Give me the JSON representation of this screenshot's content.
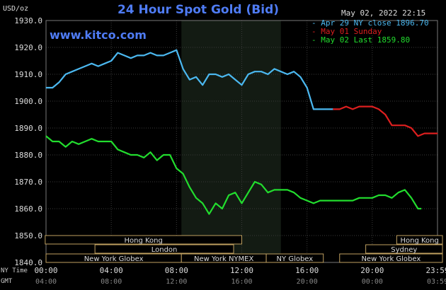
{
  "chart_data": {
    "type": "line",
    "title": "24 Hour Spot Gold (Bid)",
    "brand": "www.kitco.com",
    "timestamp": "May 02, 2022 22:15",
    "ylabel": "USD/oz",
    "ylim": [
      1840,
      1930
    ],
    "yticks": [
      "1930.0",
      "1920.0",
      "1910.0",
      "1900.0",
      "1890.0",
      "1880.0",
      "1870.0",
      "1860.0",
      "1850.0",
      "1840.0"
    ],
    "xlim": [
      0,
      24
    ],
    "xticks_ny": [
      "00:00",
      "04:00",
      "08:00",
      "12:00",
      "16:00",
      "20:00",
      "23:59"
    ],
    "xticks_gmt": [
      "04:00",
      "08:00",
      "12:00",
      "16:00",
      "20:00",
      "00:00",
      "03:59"
    ],
    "xtick_hours": [
      0,
      4,
      8,
      12,
      16,
      20,
      24
    ],
    "tz_primary": "NY Time",
    "tz_secondary": "GMT",
    "shaded_hours": [
      8.3,
      14.4
    ],
    "grid": true,
    "series": [
      {
        "name": "Apr 29 NY close 1896.70",
        "color": "#4bb8f0",
        "x": [
          0,
          0.4,
          0.8,
          1.2,
          1.6,
          2.0,
          2.4,
          2.8,
          3.2,
          3.6,
          4.0,
          4.4,
          4.8,
          5.2,
          5.6,
          6.0,
          6.4,
          6.8,
          7.2,
          7.6,
          8.0,
          8.4,
          8.8,
          9.2,
          9.6,
          10.0,
          10.4,
          10.8,
          11.2,
          11.6,
          12.0,
          12.4,
          12.8,
          13.2,
          13.6,
          14.0,
          14.4,
          14.8,
          15.2,
          15.6,
          16.0,
          16.4,
          16.8,
          17.2,
          17.6
        ],
        "y": [
          1905,
          1905,
          1907,
          1910,
          1911,
          1912,
          1913,
          1914,
          1913,
          1914,
          1915,
          1918,
          1917,
          1916,
          1917,
          1917,
          1918,
          1917,
          1917,
          1918,
          1919,
          1912,
          1908,
          1909,
          1906,
          1910,
          1910,
          1909,
          1910,
          1908,
          1906,
          1910,
          1911,
          1911,
          1910,
          1912,
          1911,
          1910,
          1911,
          1909,
          1905,
          1897,
          1897,
          1897,
          1897
        ]
      },
      {
        "name": "May 01 Sunday",
        "color": "#dd1f1f",
        "x": [
          17.6,
          18.0,
          18.4,
          18.8,
          19.2,
          19.6,
          20.0,
          20.4,
          20.8,
          21.2,
          21.6,
          22.0,
          22.4,
          22.8,
          23.2,
          23.6,
          24.0
        ],
        "y": [
          1897,
          1897,
          1898,
          1897,
          1898,
          1898,
          1898,
          1897,
          1895,
          1891,
          1891,
          1891,
          1890,
          1887,
          1888,
          1888,
          1888
        ]
      },
      {
        "name": "May 02 Last 1859.80",
        "color": "#22dd2e",
        "x": [
          0,
          0.4,
          0.8,
          1.2,
          1.6,
          2.0,
          2.4,
          2.8,
          3.2,
          3.6,
          4.0,
          4.4,
          4.8,
          5.2,
          5.6,
          6.0,
          6.4,
          6.8,
          7.2,
          7.6,
          8.0,
          8.4,
          8.8,
          9.2,
          9.6,
          10.0,
          10.4,
          10.8,
          11.2,
          11.6,
          12.0,
          12.4,
          12.8,
          13.2,
          13.6,
          14.0,
          14.4,
          14.8,
          15.2,
          15.6,
          16.0,
          16.4,
          16.8,
          17.2,
          17.6,
          18.0,
          18.4,
          18.8,
          19.2,
          19.6,
          20.0,
          20.4,
          20.8,
          21.2,
          21.6,
          22.0,
          22.4,
          22.8,
          23.0
        ],
        "y": [
          1887,
          1885,
          1885,
          1883,
          1885,
          1884,
          1885,
          1886,
          1885,
          1885,
          1885,
          1882,
          1881,
          1880,
          1880,
          1879,
          1881,
          1878,
          1880,
          1880,
          1875,
          1873,
          1868,
          1864,
          1862,
          1858,
          1862,
          1860,
          1865,
          1866,
          1862,
          1866,
          1870,
          1869,
          1866,
          1867,
          1867,
          1867,
          1866,
          1864,
          1863,
          1862,
          1863,
          1863,
          1863,
          1863,
          1863,
          1863,
          1864,
          1864,
          1864,
          1865,
          1865,
          1864,
          1866,
          1867,
          1864,
          1860,
          1860
        ]
      }
    ],
    "sessions": [
      {
        "label": "Hong Kong",
        "start": -0.2,
        "end": 12.0,
        "row": 0
      },
      {
        "label": "London",
        "start": 3.0,
        "end": 11.5,
        "row": 1
      },
      {
        "label": "New York Globex",
        "start": 0.0,
        "end": 8.3,
        "row": 2
      },
      {
        "label": "New York NYMEX",
        "start": 8.3,
        "end": 13.5,
        "row": 2
      },
      {
        "label": "NY Globex",
        "start": 13.5,
        "end": 17.0,
        "row": 2
      },
      {
        "label": "Hong Kong",
        "start": 21.5,
        "end": 24.5,
        "row": 0
      },
      {
        "label": "Sydney",
        "start": 19.6,
        "end": 24.5,
        "row": 1
      },
      {
        "label": "New York Globex",
        "start": 18.0,
        "end": 24.5,
        "row": 2
      }
    ]
  }
}
